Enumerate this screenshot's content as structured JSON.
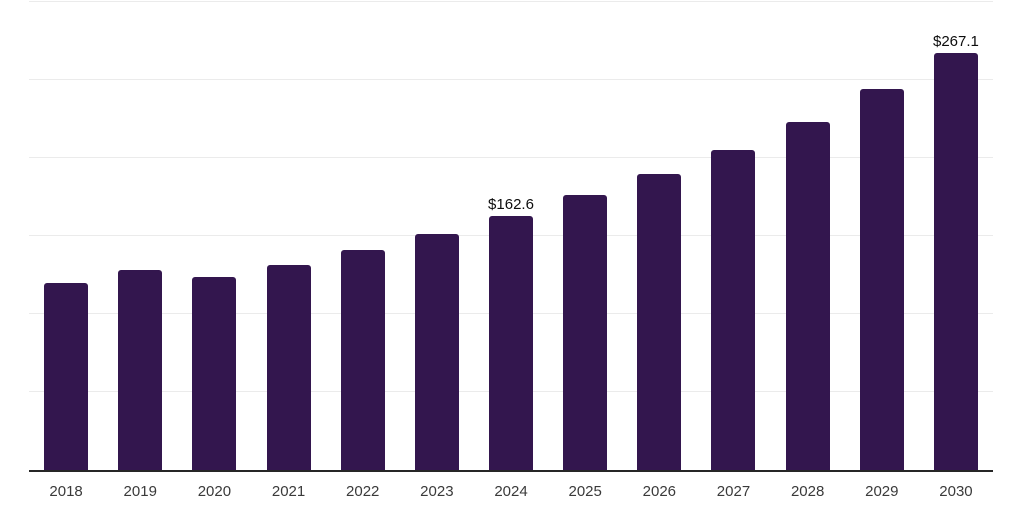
{
  "chart_data": {
    "type": "bar",
    "categories": [
      "2018",
      "2019",
      "2020",
      "2021",
      "2022",
      "2023",
      "2024",
      "2025",
      "2026",
      "2027",
      "2028",
      "2029",
      "2030"
    ],
    "values": [
      120.0,
      128.3,
      123.9,
      131.6,
      141.1,
      151.4,
      162.6,
      176.0,
      189.8,
      205.4,
      223.2,
      244.3,
      267.1
    ],
    "data_labels": [
      "",
      "",
      "",
      "",
      "",
      "",
      "$162.6",
      "",
      "",
      "",
      "",
      "",
      "$267.1"
    ],
    "title": "",
    "xlabel": "",
    "ylabel": "",
    "ylim": [
      0,
      300
    ],
    "gridline_step": 50,
    "grid": "horizontal",
    "legend": "none",
    "y_tick_labels_visible": false
  },
  "style": {
    "bar_color": "#33164e",
    "axis_color": "#262626",
    "gridline_color": "#ebebeb",
    "value_label_color": "#0d0d0d",
    "tick_label_color": "#3a3a3a",
    "background": "#ffffff"
  }
}
